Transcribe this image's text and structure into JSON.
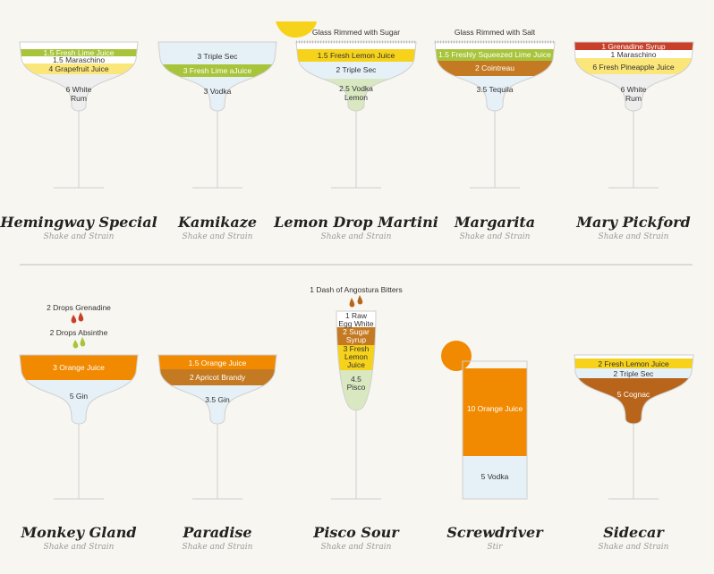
{
  "colors": {
    "lime": "#a8c43a",
    "yellow": "#f6d21a",
    "lightyellow": "#fbe67a",
    "palelightblue": "#e6f0f7",
    "orange": "#f18a00",
    "brown": "#c47a22",
    "darkbrown": "#b8651b",
    "red": "#c8402a",
    "green": "#d9e8c0",
    "white": "#ffffff"
  },
  "cocktails": [
    {
      "name": "Hemingway Special",
      "method": "Shake and Strain",
      "ingredients": [
        "1.5 Fresh Lime Juice",
        "1.5 Maraschino",
        "4 Grapefruit Juice",
        "6 White Rum"
      ]
    },
    {
      "name": "Kamikaze",
      "method": "Shake and Strain",
      "ingredients": [
        "3 Triple Sec",
        "3 Fresh Lime aJuice",
        "3 Vodka"
      ]
    },
    {
      "name": "Lemon Drop Martini",
      "method": "Shake and Strain",
      "note": "Glass Rimmed with Sugar",
      "ingredients": [
        "1.5 Fresh Lemon Juice",
        "2 Triple Sec",
        "2.5 Vodka Lemon"
      ]
    },
    {
      "name": "Margarita",
      "method": "Shake and Strain",
      "note": "Glass Rimmed with Salt",
      "ingredients": [
        "1.5 Freshly Squeezed Lime Juice",
        "2 Cointreau",
        "3.5 Tequila"
      ]
    },
    {
      "name": "Mary Pickford",
      "method": "Shake and Strain",
      "ingredients": [
        "1 Grenadine Syrup",
        "1 Maraschino",
        "6 Fresh Pineapple Juice",
        "6 White Rum"
      ]
    },
    {
      "name": "Monkey Gland",
      "method": "Shake and Strain",
      "drops": [
        "2 Drops Grenadine",
        "2 Drops Absinthe"
      ],
      "ingredients": [
        "3 Orange Juice",
        "5 Gin"
      ]
    },
    {
      "name": "Paradise",
      "method": "Shake and Strain",
      "ingredients": [
        "1.5 Orange Juice",
        "2 Apricot Brandy",
        "3.5 Gin"
      ]
    },
    {
      "name": "Pisco Sour",
      "method": "Shake and Strain",
      "note": "1 Dash of Angostura Bitters",
      "ingredients": [
        "1 Raw Egg White",
        "2 Sugar Syrup",
        "3 Fresh Lemon Juice",
        "4.5 Pisco"
      ]
    },
    {
      "name": "Screwdriver",
      "method": "Stir",
      "ingredients": [
        "10 Orange Juice",
        "5 Vodka"
      ]
    },
    {
      "name": "Sidecar",
      "method": "Shake and Strain",
      "ingredients": [
        "2 Fresh Lemon Juice",
        "2 Triple Sec",
        "5 Cognac"
      ]
    }
  ]
}
